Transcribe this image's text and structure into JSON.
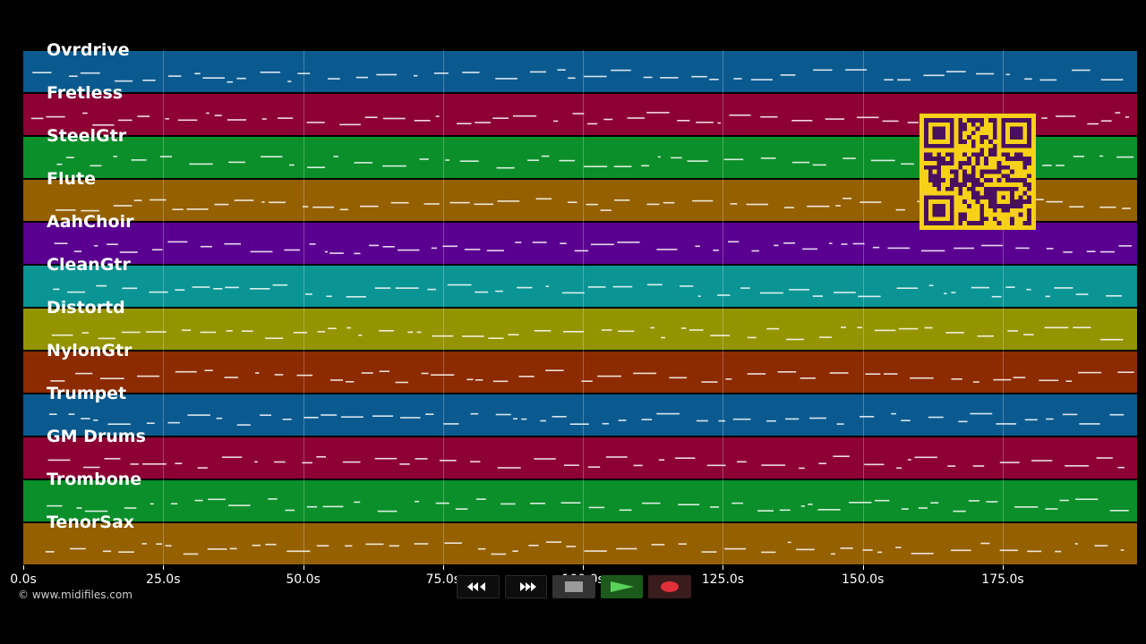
{
  "timeline": {
    "duration_s": 199,
    "ticks": [
      "0.0s",
      "25.0s",
      "50.0s",
      "75.0s",
      "100.0s",
      "125.0s",
      "150.0s",
      "175.0s"
    ],
    "tick_values_s": [
      0,
      25,
      50,
      75,
      100,
      125,
      150,
      175
    ]
  },
  "tracks": [
    {
      "name": "Ovrdrive",
      "color": "#0a5a8f"
    },
    {
      "name": "Fretless",
      "color": "#8c0033"
    },
    {
      "name": "SteelGtr",
      "color": "#0a8f2a"
    },
    {
      "name": "Flute",
      "color": "#946000"
    },
    {
      "name": "AahChoir",
      "color": "#5a0090"
    },
    {
      "name": "CleanGtr",
      "color": "#0a9494"
    },
    {
      "name": "Distortd",
      "color": "#949400"
    },
    {
      "name": "NylonGtr",
      "color": "#8c2a00"
    },
    {
      "name": "Trumpet",
      "color": "#0a5a8f"
    },
    {
      "name": "GM Drums",
      "color": "#8c0033"
    },
    {
      "name": "Trombone",
      "color": "#0a8f2a"
    },
    {
      "name": "TenorSax",
      "color": "#946000"
    }
  ],
  "copyright": "© www.midifiles.com",
  "qr": {
    "icon": "qr-code-icon",
    "bg_color": "#f7d117",
    "fg_color": "#4a1060"
  },
  "transport": {
    "rewind_icon": "rewind-icon",
    "forward_icon": "fast-forward-icon",
    "stop_icon": "stop-icon",
    "play_icon": "play-icon",
    "record_icon": "record-icon"
  }
}
